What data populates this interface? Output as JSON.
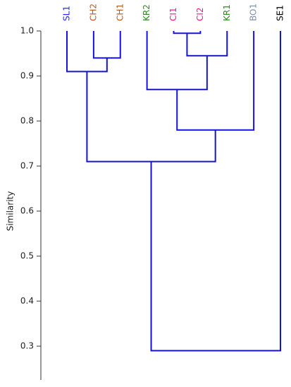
{
  "chart_data": {
    "type": "dendrogram",
    "y_label": "Similarity",
    "line_color": "#1414d8",
    "leaves": [
      {
        "name": "SL1",
        "color": "#2a2aff"
      },
      {
        "name": "CH2",
        "color": "#b0602a"
      },
      {
        "name": "CH1",
        "color": "#b0602a"
      },
      {
        "name": "KR2",
        "color": "#2e8b22"
      },
      {
        "name": "CI1",
        "color": "#e0208c"
      },
      {
        "name": "CI2",
        "color": "#e0208c"
      },
      {
        "name": "KR1",
        "color": "#2e8b22"
      },
      {
        "name": "BO1",
        "color": "#8090a8"
      },
      {
        "name": "SE1",
        "color": "#000000"
      }
    ],
    "merges": [
      {
        "children": [
          4,
          5
        ],
        "height": 0.995
      },
      {
        "children": [
          1,
          2
        ],
        "height": 0.94
      },
      {
        "children": [
          9,
          6
        ],
        "height": 0.945
      },
      {
        "children": [
          0,
          10
        ],
        "height": 0.91
      },
      {
        "children": [
          3,
          11
        ],
        "height": 0.87
      },
      {
        "children": [
          13,
          7
        ],
        "height": 0.78
      },
      {
        "children": [
          12,
          14
        ],
        "height": 0.71
      },
      {
        "children": [
          15,
          8
        ],
        "height": 0.29
      }
    ],
    "ylim": [
      0.225,
      1.0
    ],
    "yticks": [
      0.3,
      0.4,
      0.5,
      0.6,
      0.7,
      0.8,
      0.9,
      {
        "value": 1,
        "label": "1.0"
      }
    ]
  }
}
